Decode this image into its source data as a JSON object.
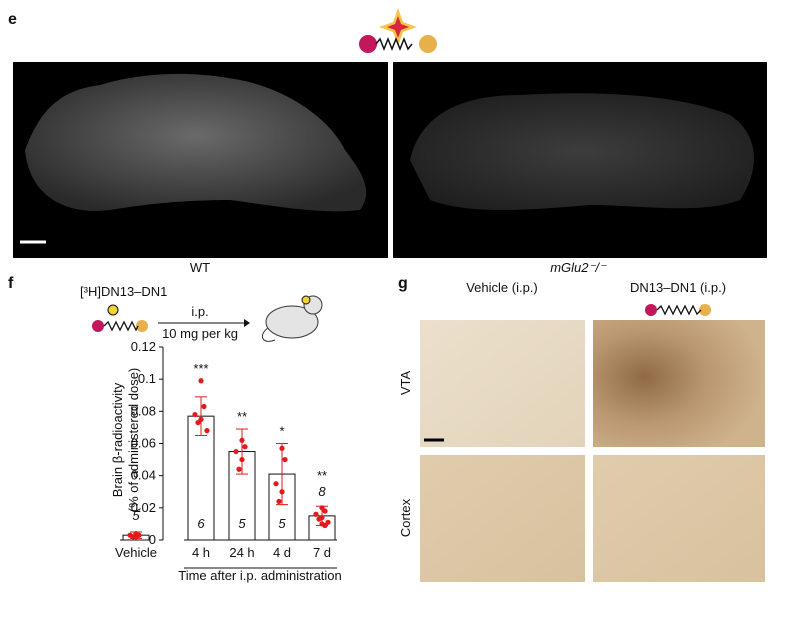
{
  "panel_e": {
    "label": "e",
    "left_caption": "WT",
    "right_caption": "mGlu2⁻/⁻"
  },
  "chart_data": {
    "type": "bar",
    "panel_label": "f",
    "compound": "[³H]DN13–DN1",
    "route": "i.p.",
    "dose": "10 mg per kg",
    "categories": [
      "Vehicle",
      "4 h",
      "24 h",
      "4 d",
      "7 d"
    ],
    "values": [
      0.003,
      0.077,
      0.055,
      0.041,
      0.015
    ],
    "errors": [
      0.002,
      0.012,
      0.014,
      0.019,
      0.006
    ],
    "n": [
      5,
      6,
      5,
      5,
      8
    ],
    "significance": [
      null,
      "***",
      "**",
      "*",
      "**"
    ],
    "points": [
      [
        0.004,
        0.003,
        0.003,
        0.002,
        0.002
      ],
      [
        0.099,
        0.083,
        0.078,
        0.075,
        0.073,
        0.068
      ],
      [
        0.062,
        0.058,
        0.055,
        0.05,
        0.044
      ],
      [
        0.057,
        0.05,
        0.035,
        0.03,
        0.024
      ],
      [
        0.02,
        0.018,
        0.016,
        0.014,
        0.013,
        0.011,
        0.01,
        0.009
      ]
    ],
    "y_label": [
      "Brain β-radioactivity",
      "(% of administered dose)"
    ],
    "x_label": "Time after i.p. administration",
    "ylim": [
      0,
      0.12
    ],
    "yticks": [
      0,
      0.02,
      0.04,
      0.06,
      0.08,
      0.1,
      0.12
    ],
    "bar_color": "#ffffff",
    "point_color": "#e31a1c"
  },
  "panel_g": {
    "label": "g",
    "columns": [
      "Vehicle (i.p.)",
      "DN13–DN1 (i.p.)"
    ],
    "rows": [
      "VTA",
      "Cortex"
    ]
  }
}
